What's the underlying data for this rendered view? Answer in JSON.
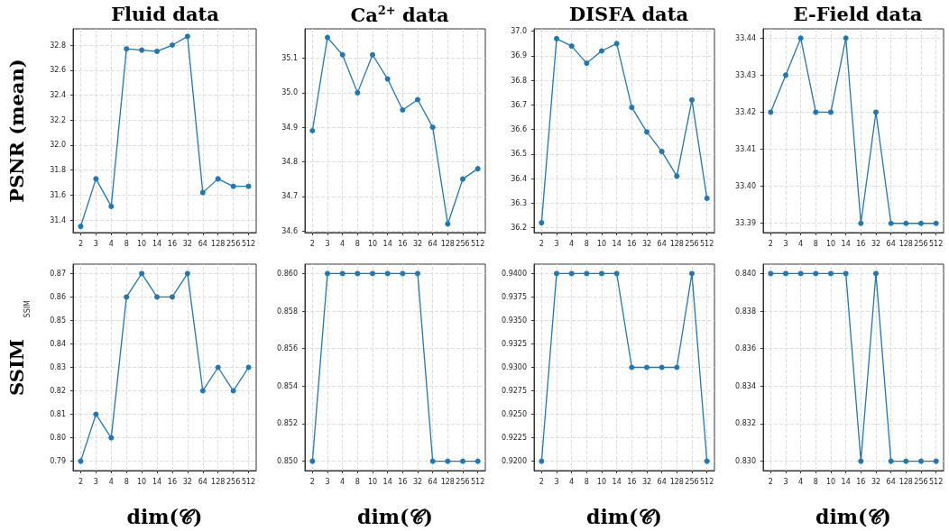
{
  "chart_data": [
    {
      "type": "line",
      "title": "Fluid data",
      "ylabel": "PSNR (mean)",
      "categories": [
        "2",
        "3",
        "4",
        "8",
        "10",
        "14",
        "16",
        "32",
        "64",
        "128",
        "256",
        "512"
      ],
      "values": [
        31.35,
        31.73,
        31.51,
        32.77,
        32.76,
        32.75,
        32.8,
        32.87,
        31.62,
        31.73,
        31.67,
        31.67
      ],
      "color": "#1f77b4",
      "ylim": [
        31.3,
        32.93
      ],
      "yticks": [
        31.4,
        31.6,
        31.8,
        {
          "value": 32.0,
          "label": "32.0"
        },
        32.2,
        32.4,
        32.6,
        32.8
      ],
      "grid": true,
      "marker": "circle",
      "line_style": "solid"
    },
    {
      "type": "line",
      "title": "Ca$^{2+}$ data",
      "categories": [
        "2",
        "3",
        "4",
        "8",
        "10",
        "14",
        "16",
        "32",
        "64",
        "128",
        "256",
        "512"
      ],
      "values": [
        34.89,
        35.16,
        35.11,
        35.0,
        35.11,
        35.04,
        34.95,
        34.98,
        34.9,
        34.62,
        34.75,
        34.78
      ],
      "color": "#1f77b4",
      "ylim": [
        34.595,
        35.185
      ],
      "yticks": [
        34.6,
        34.7,
        34.8,
        34.9,
        {
          "value": 35.0,
          "label": "35.0"
        },
        35.1
      ],
      "grid": true,
      "marker": "circle",
      "line_style": "solid"
    },
    {
      "type": "line",
      "title": "DISFA data",
      "categories": [
        "2",
        "3",
        "4",
        "8",
        "10",
        "14",
        "16",
        "32",
        "64",
        "128",
        "256",
        "512"
      ],
      "values": [
        36.22,
        36.97,
        36.94,
        36.87,
        36.92,
        36.95,
        36.69,
        36.59,
        36.51,
        36.41,
        36.72,
        36.32
      ],
      "color": "#1f77b4",
      "ylim": [
        36.18,
        37.01
      ],
      "yticks": [
        36.2,
        36.3,
        36.4,
        36.5,
        36.6,
        36.7,
        36.8,
        36.9,
        {
          "value": 37.0,
          "label": "37.0"
        }
      ],
      "grid": true,
      "marker": "circle",
      "line_style": "solid"
    },
    {
      "type": "line",
      "title": "E-Field data",
      "categories": [
        "2",
        "3",
        "4",
        "8",
        "10",
        "14",
        "16",
        "32",
        "64",
        "128",
        "256",
        "512"
      ],
      "values": [
        33.42,
        33.43,
        33.44,
        33.42,
        33.42,
        33.44,
        33.39,
        33.42,
        33.39,
        33.39,
        33.39,
        33.39
      ],
      "color": "#1f77b4",
      "ylim": [
        33.3875,
        33.4425
      ],
      "yticks": [
        33.39,
        {
          "value": 33.4,
          "label": "33.40"
        },
        33.41,
        33.42,
        33.43,
        33.44
      ],
      "grid": true,
      "marker": "circle",
      "line_style": "solid"
    },
    {
      "type": "line",
      "ylabel": "SSIM",
      "xlabel": "dim(𝒞)",
      "annotations": [
        "SSIM"
      ],
      "categories": [
        "2",
        "3",
        "4",
        "8",
        "10",
        "14",
        "16",
        "32",
        "64",
        "128",
        "256",
        "512"
      ],
      "values": [
        0.79,
        0.81,
        0.8,
        0.86,
        0.87,
        0.86,
        0.86,
        0.87,
        0.82,
        0.83,
        0.82,
        0.83
      ],
      "color": "#1f77b4",
      "ylim": [
        0.786,
        0.874
      ],
      "yticks": [
        0.79,
        {
          "value": 0.8,
          "label": "0.80"
        },
        0.81,
        0.82,
        0.83,
        0.84,
        0.85,
        0.86,
        0.87
      ],
      "grid": true,
      "marker": "circle",
      "line_style": "solid"
    },
    {
      "type": "line",
      "xlabel": "dim(𝒞)",
      "categories": [
        "2",
        "3",
        "4",
        "8",
        "10",
        "14",
        "16",
        "32",
        "64",
        "128",
        "256",
        "512"
      ],
      "values": [
        0.85,
        0.86,
        0.86,
        0.86,
        0.86,
        0.86,
        0.86,
        0.86,
        0.85,
        0.85,
        0.85,
        0.85
      ],
      "color": "#1f77b4",
      "ylim": [
        0.8495,
        0.8605
      ],
      "yticks": [
        {
          "value": 0.85,
          "label": "0.850"
        },
        0.852,
        0.854,
        0.856,
        0.858,
        {
          "value": 0.86,
          "label": "0.860"
        }
      ],
      "grid": true,
      "marker": "circle",
      "line_style": "solid"
    },
    {
      "type": "line",
      "xlabel": "dim(𝒞)",
      "categories": [
        "2",
        "3",
        "4",
        "8",
        "10",
        "14",
        "16",
        "32",
        "64",
        "128",
        "256",
        "512"
      ],
      "values": [
        0.92,
        0.94,
        0.94,
        0.94,
        0.94,
        0.94,
        0.93,
        0.93,
        0.93,
        0.93,
        0.94,
        0.92
      ],
      "color": "#1f77b4",
      "ylim": [
        0.919,
        0.941
      ],
      "yticks": [
        {
          "value": 0.92,
          "label": "0.9200"
        },
        0.9225,
        {
          "value": 0.925,
          "label": "0.9250"
        },
        0.9275,
        {
          "value": 0.93,
          "label": "0.9300"
        },
        0.9325,
        {
          "value": 0.935,
          "label": "0.9350"
        },
        0.9375,
        {
          "value": 0.94,
          "label": "0.9400"
        }
      ],
      "grid": true,
      "marker": "circle",
      "line_style": "solid"
    },
    {
      "type": "line",
      "xlabel": "dim(𝒞)",
      "categories": [
        "2",
        "3",
        "4",
        "8",
        "10",
        "14",
        "16",
        "32",
        "64",
        "128",
        "256",
        "512"
      ],
      "values": [
        0.84,
        0.84,
        0.84,
        0.84,
        0.84,
        0.84,
        0.83,
        0.84,
        0.83,
        0.83,
        0.83,
        0.83
      ],
      "color": "#1f77b4",
      "ylim": [
        0.8295,
        0.8405
      ],
      "yticks": [
        {
          "value": 0.83,
          "label": "0.830"
        },
        0.832,
        0.834,
        0.836,
        0.838,
        {
          "value": 0.84,
          "label": "0.840"
        }
      ],
      "grid": true,
      "marker": "circle",
      "line_style": "solid"
    }
  ]
}
